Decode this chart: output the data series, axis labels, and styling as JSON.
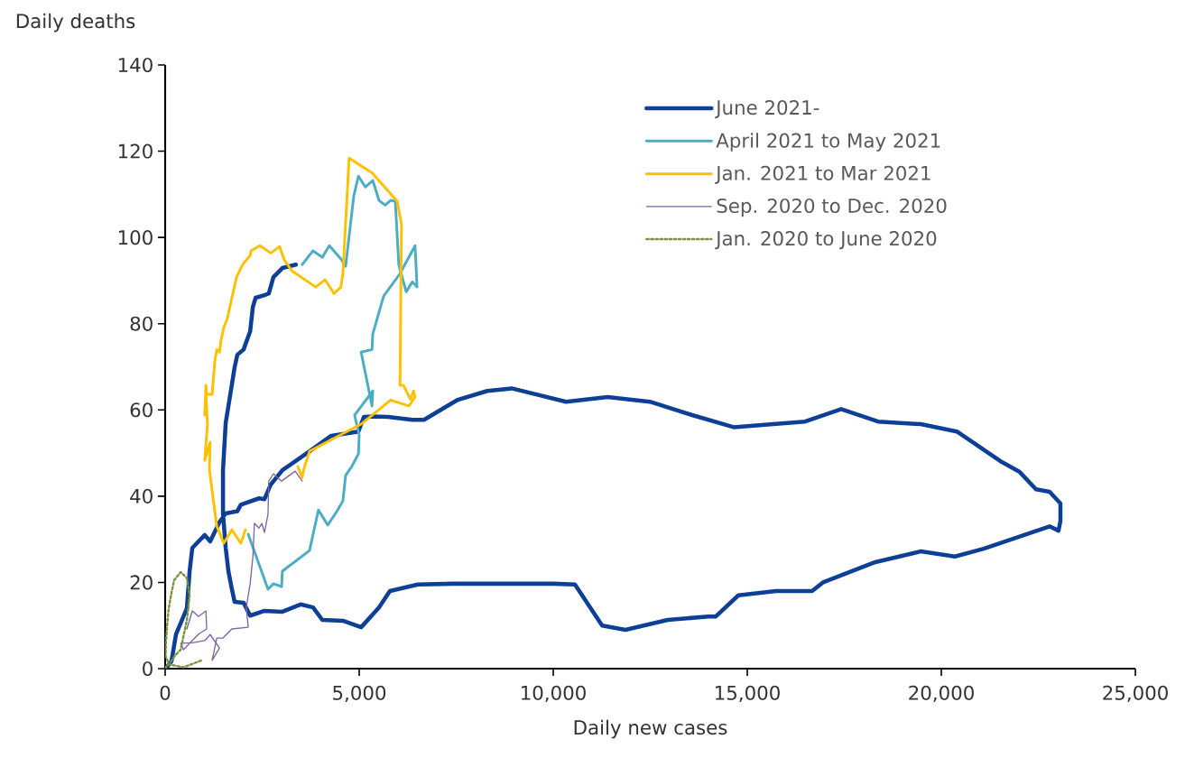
{
  "chart_data": {
    "type": "line",
    "xlabel": "Daily new cases",
    "ylabel": "Daily deaths",
    "xlim": [
      0,
      25000
    ],
    "ylim": [
      0,
      140
    ],
    "xticks": [
      0,
      {
        "value": 5000,
        "label": "5,000"
      },
      {
        "value": 10000,
        "label": "10,000"
      },
      {
        "value": 15000,
        "label": "15,000"
      },
      {
        "value": 20000,
        "label": "20,000"
      },
      {
        "value": 25000,
        "label": "25,000"
      }
    ],
    "yticks": [
      0,
      20,
      40,
      60,
      80,
      100,
      120,
      140
    ],
    "legend": "top right",
    "series": [
      {
        "name": "June 2021-",
        "color": "#0d3f96",
        "line_style": "solid",
        "x": [
          3370,
          3020,
          2790,
          2670,
          2560,
          2330,
          2260,
          2190,
          2020,
          1860,
          1790,
          1650,
          1560,
          1490,
          1490,
          1560,
          1630,
          1720,
          1790,
          2020,
          2190,
          2560,
          3020,
          3490,
          3810,
          4050,
          4580,
          5050,
          5510,
          5790,
          6510,
          7440,
          10000,
          10560,
          11260,
          11860,
          12950,
          14000,
          14190,
          14770,
          15740,
          16670,
          16950,
          18300,
          19470,
          20350,
          21090,
          22790,
          23020,
          23070,
          23070,
          22790,
          22440,
          22020,
          21560,
          20400,
          19470,
          18370,
          17420,
          16490,
          15670,
          14650,
          13580,
          12490,
          11400,
          10330,
          8930,
          8300,
          7530,
          6670,
          6370,
          5740,
          5350,
          5120,
          4980,
          4280,
          3720,
          3020,
          2720,
          2560,
          2420,
          1950,
          1860,
          1560,
          1400,
          1160,
          1020,
          860,
          700,
          630,
          560,
          280,
          163,
          60
        ],
        "values": [
          93.7,
          92.9,
          90.8,
          87,
          86.6,
          86,
          83.9,
          78.2,
          74,
          72.8,
          69.9,
          62,
          57,
          46,
          36,
          28,
          22.6,
          18.4,
          15.5,
          15.3,
          12.3,
          13.4,
          13.2,
          14.9,
          14.2,
          11.3,
          11.1,
          9.6,
          14.2,
          18,
          19.5,
          19.7,
          19.7,
          19.5,
          10,
          9,
          11.3,
          12.1,
          12.1,
          17,
          18,
          18,
          20,
          24.7,
          27.2,
          26,
          27.8,
          33,
          32,
          34.3,
          38.3,
          41,
          41.6,
          45.6,
          47.9,
          55,
          56.7,
          57.3,
          60.2,
          57.3,
          56.7,
          56,
          58.8,
          61.9,
          63,
          61.9,
          65,
          64.4,
          62.3,
          57.7,
          57.7,
          58.4,
          58.5,
          58.4,
          55,
          54,
          50.4,
          46,
          42.7,
          39.3,
          39.5,
          38,
          36.5,
          36,
          34,
          29.5,
          31,
          29.5,
          28,
          22.6,
          14,
          8,
          1.7,
          0.5
        ]
      },
      {
        "name": "April 2021 to May 2021",
        "color": "#4bacc6",
        "line_style": "solid",
        "x": [
          2140,
          2650,
          2790,
          3000,
          3020,
          3720,
          3950,
          4190,
          4420,
          4580,
          4650,
          4810,
          4980,
          5000,
          4880,
          5350,
          5330,
          5050,
          5330,
          5350,
          5630,
          6050,
          6440,
          6490,
          6370,
          6210,
          6020,
          5930,
          5810,
          5670,
          5510,
          5350,
          5160,
          4980,
          4860,
          4650,
          4530,
          4230,
          4050,
          3810,
          3530
        ],
        "values": [
          31.2,
          18.4,
          19.7,
          19,
          22.6,
          27.4,
          36.8,
          33.3,
          36.4,
          38.9,
          44.8,
          46.9,
          49.8,
          54.2,
          58.8,
          64.4,
          60.9,
          73.4,
          74,
          77.6,
          86.4,
          91.6,
          98.1,
          88.5,
          89.7,
          87.4,
          93.7,
          108.4,
          108.6,
          107.5,
          108.6,
          113.2,
          111.7,
          114.2,
          109.6,
          93.3,
          95,
          98.1,
          95.4,
          96.9,
          93.7
        ]
      },
      {
        "name": "Jan. 2021 to Mar 2021",
        "color": "#ffc000",
        "line_style": "solid",
        "x": [
          3420,
          3530,
          3580,
          3720,
          4280,
          5050,
          5810,
          6280,
          6440,
          6400,
          6320,
          6140,
          6050,
          6090,
          5980,
          5330,
          4740,
          4580,
          4530,
          4350,
          4120,
          3880,
          3260,
          3070,
          2950,
          2720,
          2440,
          2210,
          2190,
          2020,
          1950,
          1840,
          1600,
          1510,
          1440,
          1400,
          1330,
          1280,
          1210,
          1070,
          1050,
          1020,
          1050,
          1090,
          1020,
          1160,
          1140,
          1330,
          1510,
          1720,
          1950,
          2070
        ],
        "values": [
          46.8,
          44.3,
          46.5,
          50.4,
          53.1,
          56.7,
          62.3,
          60.9,
          63,
          64.4,
          62.5,
          65.7,
          65.7,
          103,
          108.4,
          115,
          118.4,
          91.6,
          88.5,
          87,
          90.2,
          88.5,
          92.3,
          94.8,
          97.9,
          96.4,
          98.1,
          96.9,
          95.8,
          94,
          92.9,
          90.8,
          81.2,
          79.1,
          76.2,
          73.4,
          74,
          71.3,
          63.6,
          63.6,
          65.7,
          58.8,
          63.6,
          56.7,
          48.3,
          52.5,
          46.2,
          33,
          29.1,
          32.2,
          29.1,
          32.2
        ]
      },
      {
        "name": "Sep. 2020 to Dec. 2020",
        "color": "#8064a2",
        "line_style": "solid",
        "x": [
          560,
          700,
          860,
          1050,
          1070,
          860,
          470,
          400,
          700,
          1020,
          1160,
          1400,
          1210,
          1330,
          1490,
          1720,
          2140,
          2090,
          2190,
          2260,
          2300,
          2420,
          2490,
          2560,
          2650,
          2670,
          2790,
          3000,
          3350,
          3530
        ],
        "values": [
          9.2,
          13.4,
          12.1,
          13.4,
          9.2,
          8,
          4.4,
          5.9,
          6,
          6.5,
          7.9,
          4.8,
          1.9,
          7.1,
          7.1,
          9.2,
          9.6,
          14.2,
          19.7,
          25.9,
          33.7,
          32.6,
          33.7,
          31.6,
          35.8,
          43.5,
          45.2,
          43.5,
          45.8,
          43.5
        ]
      },
      {
        "name": "Jan. 2020 to June 2020",
        "color": "#77933c",
        "line_style": "dotted",
        "x": [
          0,
          30,
          100,
          250,
          400,
          560,
          630,
          560,
          400,
          230,
          150,
          93,
          50,
          20,
          10,
          100,
          470,
          930
        ],
        "values": [
          0,
          0.5,
          1,
          3,
          4.4,
          11.3,
          17,
          21,
          22.4,
          20.5,
          17,
          14,
          10,
          6,
          3,
          1,
          0.3,
          1.9
        ]
      }
    ]
  }
}
